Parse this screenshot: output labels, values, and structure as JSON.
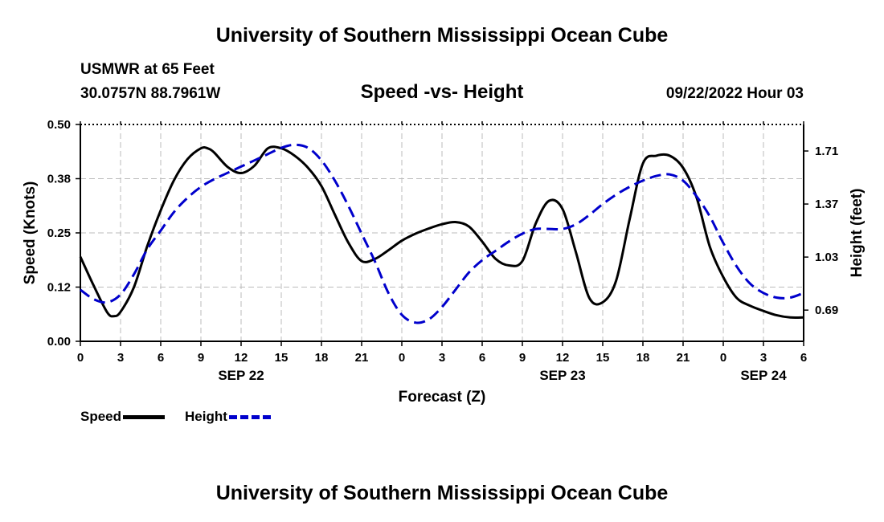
{
  "header": {
    "title": "University of Southern Mississippi Ocean Cube",
    "station_name": "USMWR at 65 Feet",
    "coordinates": "30.0757N  88.7961W",
    "plot_title": "Speed -vs- Height",
    "issued": "09/22/2022 Hour 03"
  },
  "footer": {
    "title": "University of Southern Mississippi Ocean Cube"
  },
  "legend": {
    "speed_label": "Speed",
    "height_label": "Height",
    "speed_color": "#000000",
    "height_color": "#0000cc"
  },
  "chart_data": {
    "type": "line",
    "title": "Speed -vs- Height",
    "xlabel": "Forecast (Z)",
    "ylabel": "Speed (Knots)",
    "y2label": "Height (feet)",
    "x_range_hours": [
      0,
      54
    ],
    "x_tick_hours": [
      0,
      3,
      6,
      9,
      12,
      15,
      18,
      21,
      24,
      27,
      30,
      33,
      36,
      39,
      42,
      45,
      48,
      51,
      54
    ],
    "x_tick_labels": [
      "0",
      "3",
      "6",
      "9",
      "12",
      "15",
      "18",
      "21",
      "0",
      "3",
      "6",
      "9",
      "12",
      "15",
      "18",
      "21",
      "0",
      "3",
      "6"
    ],
    "date_labels": [
      {
        "hour": 12,
        "label": "SEP 22"
      },
      {
        "hour": 36,
        "label": "SEP 23"
      },
      {
        "hour": 51,
        "label": "SEP 24"
      }
    ],
    "ylim": [
      0,
      0.5
    ],
    "y_ticks": [
      0.0,
      0.125,
      0.25,
      0.375,
      0.5
    ],
    "y_tick_labels": [
      "0.00",
      "0.12",
      "0.25",
      "0.38",
      "0.50"
    ],
    "y2lim": [
      0.49,
      1.88
    ],
    "y2_ticks": [
      0.69,
      1.03,
      1.37,
      1.71
    ],
    "y2_tick_labels": [
      "0.69",
      "1.03",
      "1.37",
      "1.71"
    ],
    "grid": true,
    "series": [
      {
        "name": "Speed",
        "axis": "left",
        "style": "solid",
        "x": [
          0,
          1,
          2,
          2.5,
          3,
          4,
          5,
          6,
          7,
          8,
          9,
          9.5,
          10,
          11,
          12,
          13,
          14,
          15,
          16,
          17,
          18,
          19,
          20,
          21,
          22,
          23,
          24,
          25,
          26,
          27,
          28,
          29,
          30,
          31,
          32,
          33,
          34,
          35,
          36,
          37,
          38,
          39,
          40,
          41,
          42,
          43,
          44,
          45,
          46,
          47,
          48,
          49,
          50,
          51,
          52,
          53,
          54
        ],
        "values": [
          0.195,
          0.128,
          0.067,
          0.058,
          0.068,
          0.125,
          0.22,
          0.302,
          0.372,
          0.42,
          0.445,
          0.445,
          0.435,
          0.402,
          0.388,
          0.405,
          0.445,
          0.445,
          0.428,
          0.4,
          0.358,
          0.292,
          0.228,
          0.185,
          0.19,
          0.21,
          0.232,
          0.248,
          0.26,
          0.27,
          0.275,
          0.265,
          0.23,
          0.19,
          0.175,
          0.185,
          0.272,
          0.324,
          0.305,
          0.205,
          0.1,
          0.09,
          0.14,
          0.28,
          0.41,
          0.428,
          0.428,
          0.4,
          0.332,
          0.218,
          0.148,
          0.1,
          0.082,
          0.07,
          0.06,
          0.055,
          0.055
        ]
      },
      {
        "name": "Height",
        "axis": "right",
        "style": "dashed",
        "x": [
          0,
          1,
          2,
          3,
          4,
          5,
          6,
          7,
          8,
          9,
          10,
          11,
          12,
          13,
          14,
          15,
          16,
          17,
          18,
          19,
          20,
          21,
          22,
          23,
          24,
          25,
          26,
          27,
          28,
          29,
          30,
          31,
          32,
          33,
          34,
          35,
          36,
          37,
          38,
          39,
          40,
          41,
          42,
          43,
          44,
          45,
          46,
          47,
          48,
          49,
          50,
          51,
          52,
          53,
          54
        ],
        "values": [
          0.82,
          0.76,
          0.74,
          0.79,
          0.92,
          1.08,
          1.2,
          1.32,
          1.41,
          1.48,
          1.53,
          1.57,
          1.61,
          1.65,
          1.69,
          1.73,
          1.75,
          1.73,
          1.65,
          1.52,
          1.36,
          1.18,
          1.0,
          0.8,
          0.66,
          0.61,
          0.63,
          0.71,
          0.82,
          0.93,
          1.01,
          1.07,
          1.13,
          1.18,
          1.21,
          1.21,
          1.21,
          1.24,
          1.3,
          1.37,
          1.43,
          1.48,
          1.52,
          1.55,
          1.56,
          1.52,
          1.42,
          1.29,
          1.12,
          0.97,
          0.86,
          0.8,
          0.77,
          0.77,
          0.8
        ]
      }
    ]
  }
}
